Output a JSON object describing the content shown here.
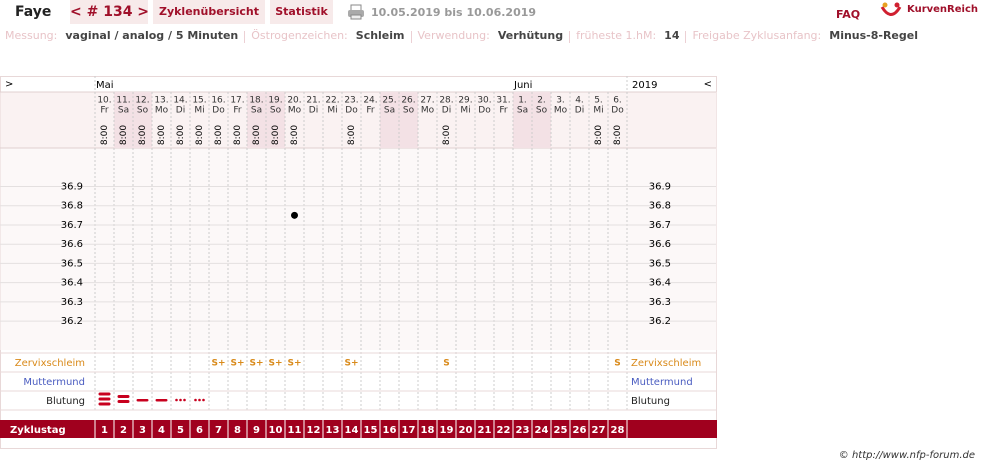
{
  "header": {
    "name": "Faye",
    "cycle": "< # 134 >",
    "tabs": [
      "Zyklenübersicht",
      "Statistik"
    ],
    "date_range": "10.05.2019 bis 10.06.2019",
    "faq": "FAQ",
    "logo": "KurvenReich"
  },
  "info": [
    {
      "label": "Messung:",
      "value": "vaginal / analog / 5 Minuten"
    },
    {
      "label": "Östrogenzeichen:",
      "value": "Schleim"
    },
    {
      "label": "Verwendung:",
      "value": "Verhütung"
    },
    {
      "label": "früheste 1.hM:",
      "value": "14"
    },
    {
      "label": "Freigabe Zyklusanfang:",
      "value": "Minus-8-Regel"
    }
  ],
  "chart": {
    "nav_prev": ">",
    "nav_next": "<",
    "months": [
      "Mai",
      "Juni"
    ],
    "year": "2019",
    "days": [
      {
        "date": "10.",
        "weekday": "Fr",
        "time": "8:00"
      },
      {
        "date": "11.",
        "weekday": "Sa",
        "time": "8:00"
      },
      {
        "date": "12.",
        "weekday": "So",
        "time": "8:00"
      },
      {
        "date": "13.",
        "weekday": "Mo",
        "time": "8:00"
      },
      {
        "date": "14.",
        "weekday": "Di",
        "time": "8:00"
      },
      {
        "date": "15.",
        "weekday": "Mi",
        "time": "8:00"
      },
      {
        "date": "16.",
        "weekday": "Do",
        "time": "8:00"
      },
      {
        "date": "17.",
        "weekday": "Fr",
        "time": "8:00"
      },
      {
        "date": "18.",
        "weekday": "Sa",
        "time": "8:00"
      },
      {
        "date": "19.",
        "weekday": "So",
        "time": "8:00"
      },
      {
        "date": "20.",
        "weekday": "Mo",
        "time": "8:00"
      },
      {
        "date": "21.",
        "weekday": "Di",
        "time": null
      },
      {
        "date": "22.",
        "weekday": "Mi",
        "time": null
      },
      {
        "date": "23.",
        "weekday": "Do",
        "time": "8:00"
      },
      {
        "date": "24.",
        "weekday": "Fr",
        "time": null
      },
      {
        "date": "25.",
        "weekday": "Sa",
        "time": null
      },
      {
        "date": "26.",
        "weekday": "So",
        "time": null
      },
      {
        "date": "27.",
        "weekday": "Mo",
        "time": null
      },
      {
        "date": "28.",
        "weekday": "Di",
        "time": "8:00"
      },
      {
        "date": "29.",
        "weekday": "Mi",
        "time": null
      },
      {
        "date": "30.",
        "weekday": "Do",
        "time": null
      },
      {
        "date": "31.",
        "weekday": "Fr",
        "time": null
      },
      {
        "date": "1.",
        "weekday": "Sa",
        "time": null
      },
      {
        "date": "2.",
        "weekday": "So",
        "time": null
      },
      {
        "date": "3.",
        "weekday": "Mo",
        "time": null
      },
      {
        "date": "4.",
        "weekday": "Di",
        "time": null
      },
      {
        "date": "5.",
        "weekday": "Mi",
        "time": "8:00"
      },
      {
        "date": "6.",
        "weekday": "Do",
        "time": "8:00"
      }
    ],
    "temperature": {
      "ylim": [
        36.05,
        37.1
      ],
      "yticks": [
        36.2,
        36.3,
        36.4,
        36.5,
        36.6,
        36.7,
        36.8,
        36.9
      ],
      "values": [
        null,
        null,
        null,
        null,
        null,
        null,
        null,
        null,
        null,
        null,
        36.75,
        null,
        null,
        null,
        null,
        null,
        null,
        null,
        null,
        null,
        null,
        null,
        null,
        null,
        null,
        null,
        null,
        null
      ]
    },
    "cervix": {
      "label": "Zervixschleim",
      "values": [
        null,
        null,
        null,
        null,
        null,
        null,
        "S+",
        "S+",
        "S+",
        "S+",
        "S+",
        null,
        null,
        "S+",
        null,
        null,
        null,
        null,
        "S",
        null,
        null,
        null,
        null,
        null,
        null,
        null,
        null,
        "S"
      ]
    },
    "cervix_os": {
      "label": "Muttermund"
    },
    "bleeding": {
      "label": "Blutung",
      "values": [
        4,
        3,
        2,
        2,
        1,
        1,
        null,
        null,
        null,
        null,
        null,
        null,
        null,
        null,
        null,
        null,
        null,
        null,
        null,
        null,
        null,
        null,
        null,
        null,
        null,
        null,
        null,
        null
      ]
    },
    "cycle_label": "Zyklustag",
    "cycle_days": [
      1,
      2,
      3,
      4,
      5,
      6,
      7,
      8,
      9,
      10,
      11,
      12,
      13,
      14,
      15,
      16,
      17,
      18,
      19,
      20,
      21,
      22,
      23,
      24,
      25,
      26,
      27,
      28
    ]
  },
  "footer": "© http://www.nfp-forum.de"
}
